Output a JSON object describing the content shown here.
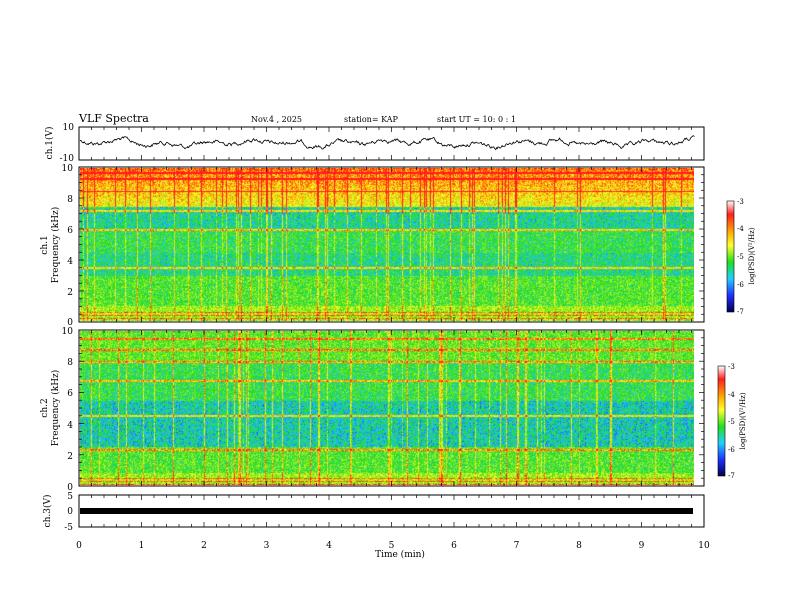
{
  "header": {
    "title": "VLF Spectra",
    "date": "Nov.4 , 2025",
    "station": "station= KAP",
    "start_ut": "start  UT =   10: 0  : 1"
  },
  "chart_data": {
    "type": "heatmap",
    "x_axis": {
      "label": "Time (min)",
      "range": [
        0,
        10
      ],
      "ticks": [
        "0",
        "1",
        "2",
        "3",
        "4",
        "5",
        "6",
        "7",
        "8",
        "9",
        "10"
      ]
    },
    "panels": [
      {
        "id": "ch1_waveform",
        "type": "line",
        "ylabel": "ch.1(V)",
        "ylim": [
          -10,
          10
        ],
        "ytick_labels": [
          "10",
          "-10"
        ]
      },
      {
        "id": "ch1_spectrum",
        "type": "heatmap",
        "ylabel_1": "ch.1",
        "ylabel_2": "Frequency (kHz)",
        "ylim": [
          0,
          10
        ],
        "ytick_labels": [
          "0",
          "2",
          "4",
          "6",
          "8",
          "10"
        ],
        "colorbar": {
          "label": "log(PSD)(V²/Hz)",
          "range": [
            -7,
            -3
          ],
          "tick_labels": [
            "-3",
            "-4",
            "-5",
            "-6",
            "-7"
          ]
        }
      },
      {
        "id": "ch2_spectrum",
        "type": "heatmap",
        "ylabel_1": "ch.2",
        "ylabel_2": "Frequency (kHz)",
        "ylim": [
          0,
          10
        ],
        "ytick_labels": [
          "0",
          "2",
          "4",
          "6",
          "8",
          "10"
        ],
        "colorbar": {
          "label": "log(PSD)(V²/Hz)",
          "range": [
            -7,
            -3
          ],
          "tick_labels": [
            "-3",
            "-4",
            "-5",
            "-6",
            "-7"
          ]
        }
      },
      {
        "id": "ch3_waveform",
        "type": "line",
        "ylabel": "ch.3(V)",
        "ylim": [
          -5,
          5
        ],
        "ytick_labels": [
          "5",
          "0",
          "-5"
        ]
      }
    ],
    "data_end_min": 9.85
  }
}
